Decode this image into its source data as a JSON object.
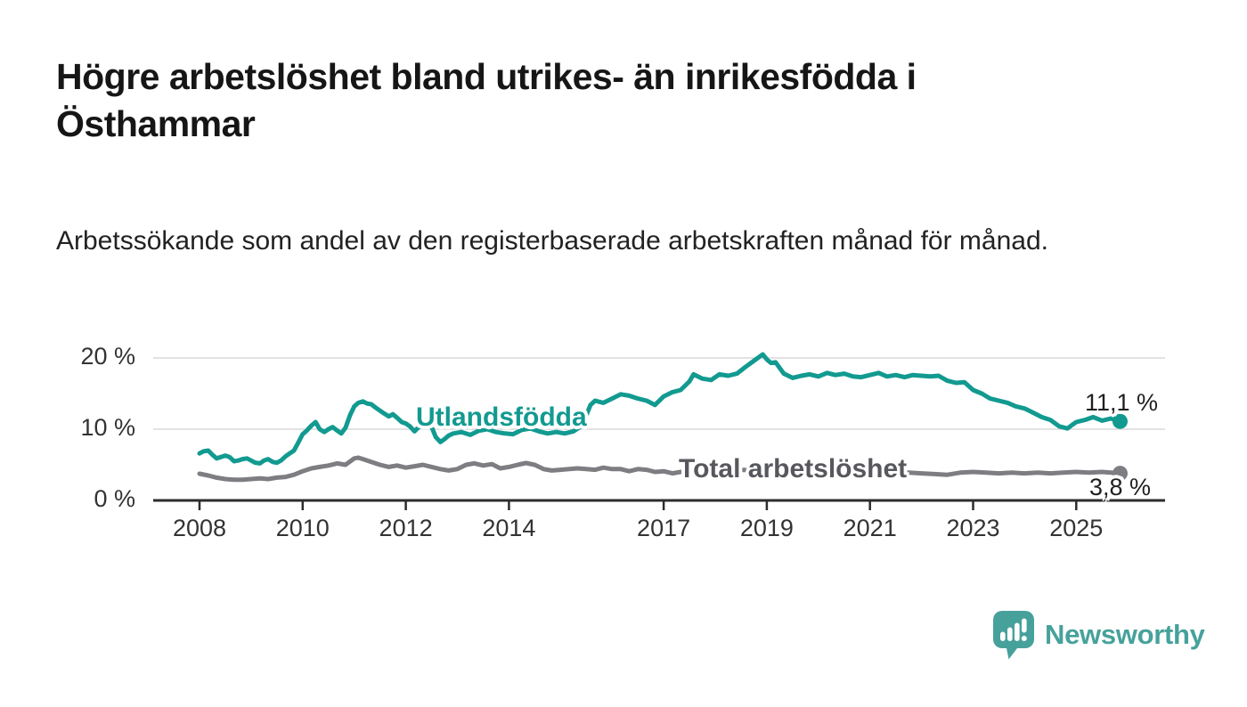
{
  "header": {
    "title": "Högre arbetslöshet bland utrikes- än inrikesfödda i Östhammar",
    "subtitle": "Arbetssökande som andel av den registerbaserade arbetskraften månad för månad."
  },
  "chart_data": {
    "type": "line",
    "title": "Högre arbetslöshet bland utrikes- än inrikesfödda i Östhammar",
    "subtitle": "Arbetssökande som andel av den registerbaserade arbetskraften månad för månad.",
    "grid": "horizontal-only",
    "legend_position": "inline-on-lines",
    "x_axis": {
      "ticks": [
        2008,
        2010,
        2012,
        2014,
        2017,
        2019,
        2021,
        2023,
        2025
      ],
      "range": [
        2007.1,
        2026.7
      ]
    },
    "y_axis": {
      "ticks": [
        0,
        10,
        20
      ],
      "tick_labels": [
        "0 %",
        "10 %",
        "20 %"
      ],
      "range": [
        0,
        21.5
      ],
      "unit": "%"
    },
    "colors": {
      "axis": "#2d2d2d",
      "gridline": "#d9d9d9",
      "tick_text": "#333333"
    },
    "series": [
      {
        "name": "Utlandsfödda",
        "slug": "utlandsfodda",
        "color": "#129a90",
        "label_color": "#129a90",
        "end_label": "11,1 %",
        "end_value": 11.1,
        "points": [
          [
            2008.0,
            6.6
          ],
          [
            2008.08,
            6.9
          ],
          [
            2008.17,
            7.0
          ],
          [
            2008.25,
            6.4
          ],
          [
            2008.33,
            5.9
          ],
          [
            2008.42,
            6.1
          ],
          [
            2008.5,
            6.3
          ],
          [
            2008.58,
            6.1
          ],
          [
            2008.67,
            5.5
          ],
          [
            2008.75,
            5.6
          ],
          [
            2008.83,
            5.8
          ],
          [
            2008.92,
            5.9
          ],
          [
            2009.0,
            5.6
          ],
          [
            2009.08,
            5.3
          ],
          [
            2009.17,
            5.2
          ],
          [
            2009.25,
            5.6
          ],
          [
            2009.33,
            5.8
          ],
          [
            2009.42,
            5.4
          ],
          [
            2009.5,
            5.3
          ],
          [
            2009.58,
            5.6
          ],
          [
            2009.67,
            6.2
          ],
          [
            2009.75,
            6.6
          ],
          [
            2009.83,
            7.0
          ],
          [
            2009.92,
            8.2
          ],
          [
            2010.0,
            9.3
          ],
          [
            2010.08,
            9.8
          ],
          [
            2010.17,
            10.5
          ],
          [
            2010.25,
            11.0
          ],
          [
            2010.33,
            10.0
          ],
          [
            2010.42,
            9.6
          ],
          [
            2010.5,
            10.0
          ],
          [
            2010.58,
            10.3
          ],
          [
            2010.67,
            9.8
          ],
          [
            2010.75,
            9.4
          ],
          [
            2010.83,
            10.2
          ],
          [
            2010.92,
            12.0
          ],
          [
            2011.0,
            13.2
          ],
          [
            2011.08,
            13.7
          ],
          [
            2011.17,
            13.9
          ],
          [
            2011.25,
            13.6
          ],
          [
            2011.33,
            13.5
          ],
          [
            2011.42,
            13.0
          ],
          [
            2011.5,
            12.6
          ],
          [
            2011.58,
            12.2
          ],
          [
            2011.67,
            11.8
          ],
          [
            2011.75,
            12.1
          ],
          [
            2011.83,
            11.6
          ],
          [
            2011.92,
            11.0
          ],
          [
            2012.0,
            10.8
          ],
          [
            2012.08,
            10.4
          ],
          [
            2012.17,
            9.7
          ],
          [
            2012.25,
            10.3
          ],
          [
            2012.33,
            10.6
          ],
          [
            2012.42,
            10.9
          ],
          [
            2012.5,
            10.3
          ],
          [
            2012.58,
            8.9
          ],
          [
            2012.67,
            8.2
          ],
          [
            2012.75,
            8.6
          ],
          [
            2012.83,
            9.1
          ],
          [
            2012.92,
            9.4
          ],
          [
            2013.08,
            9.6
          ],
          [
            2013.25,
            9.2
          ],
          [
            2013.42,
            9.8
          ],
          [
            2013.58,
            10.0
          ],
          [
            2013.75,
            9.6
          ],
          [
            2013.92,
            9.4
          ],
          [
            2014.08,
            9.3
          ],
          [
            2014.25,
            9.9
          ],
          [
            2014.42,
            10.1
          ],
          [
            2014.58,
            9.7
          ],
          [
            2014.75,
            9.4
          ],
          [
            2014.92,
            9.6
          ],
          [
            2015.08,
            9.4
          ],
          [
            2015.25,
            9.7
          ],
          [
            2015.42,
            10.5
          ],
          [
            2015.58,
            13.4
          ],
          [
            2015.67,
            14.0
          ],
          [
            2015.83,
            13.7
          ],
          [
            2016.0,
            14.3
          ],
          [
            2016.17,
            14.9
          ],
          [
            2016.33,
            14.7
          ],
          [
            2016.5,
            14.3
          ],
          [
            2016.67,
            14.0
          ],
          [
            2016.83,
            13.4
          ],
          [
            2017.0,
            14.6
          ],
          [
            2017.17,
            15.2
          ],
          [
            2017.33,
            15.5
          ],
          [
            2017.5,
            16.7
          ],
          [
            2017.58,
            17.7
          ],
          [
            2017.75,
            17.1
          ],
          [
            2017.92,
            16.9
          ],
          [
            2018.08,
            17.7
          ],
          [
            2018.25,
            17.5
          ],
          [
            2018.42,
            17.8
          ],
          [
            2018.58,
            18.7
          ],
          [
            2018.75,
            19.6
          ],
          [
            2018.92,
            20.5
          ],
          [
            2019.0,
            19.8
          ],
          [
            2019.08,
            19.3
          ],
          [
            2019.17,
            19.4
          ],
          [
            2019.33,
            17.8
          ],
          [
            2019.5,
            17.2
          ],
          [
            2019.67,
            17.5
          ],
          [
            2019.83,
            17.7
          ],
          [
            2020.0,
            17.4
          ],
          [
            2020.17,
            17.9
          ],
          [
            2020.33,
            17.6
          ],
          [
            2020.5,
            17.8
          ],
          [
            2020.67,
            17.4
          ],
          [
            2020.83,
            17.3
          ],
          [
            2021.0,
            17.6
          ],
          [
            2021.17,
            17.9
          ],
          [
            2021.33,
            17.4
          ],
          [
            2021.5,
            17.6
          ],
          [
            2021.67,
            17.3
          ],
          [
            2021.83,
            17.6
          ],
          [
            2022.0,
            17.5
          ],
          [
            2022.17,
            17.4
          ],
          [
            2022.33,
            17.5
          ],
          [
            2022.5,
            16.8
          ],
          [
            2022.67,
            16.5
          ],
          [
            2022.83,
            16.6
          ],
          [
            2023.0,
            15.5
          ],
          [
            2023.17,
            15.0
          ],
          [
            2023.33,
            14.3
          ],
          [
            2023.5,
            14.0
          ],
          [
            2023.67,
            13.7
          ],
          [
            2023.83,
            13.2
          ],
          [
            2024.0,
            12.9
          ],
          [
            2024.17,
            12.3
          ],
          [
            2024.33,
            11.7
          ],
          [
            2024.5,
            11.3
          ],
          [
            2024.67,
            10.4
          ],
          [
            2024.83,
            10.1
          ],
          [
            2024.92,
            10.6
          ],
          [
            2025.0,
            11.0
          ],
          [
            2025.17,
            11.3
          ],
          [
            2025.33,
            11.7
          ],
          [
            2025.5,
            11.2
          ],
          [
            2025.67,
            11.5
          ],
          [
            2025.85,
            11.1
          ]
        ]
      },
      {
        "name": "Total arbetslöshet",
        "slug": "total-arbetsloshet",
        "color": "#7d7d82",
        "label_color": "#57575e",
        "end_label": "3,8 %",
        "end_value": 3.8,
        "points": [
          [
            2008.0,
            3.75
          ],
          [
            2008.17,
            3.5
          ],
          [
            2008.33,
            3.2
          ],
          [
            2008.5,
            3.0
          ],
          [
            2008.67,
            2.9
          ],
          [
            2008.83,
            2.9
          ],
          [
            2009.0,
            3.0
          ],
          [
            2009.17,
            3.1
          ],
          [
            2009.33,
            3.0
          ],
          [
            2009.5,
            3.2
          ],
          [
            2009.67,
            3.3
          ],
          [
            2009.83,
            3.6
          ],
          [
            2010.0,
            4.1
          ],
          [
            2010.17,
            4.5
          ],
          [
            2010.33,
            4.7
          ],
          [
            2010.5,
            4.9
          ],
          [
            2010.67,
            5.2
          ],
          [
            2010.83,
            5.0
          ],
          [
            2011.0,
            5.9
          ],
          [
            2011.08,
            6.0
          ],
          [
            2011.17,
            5.8
          ],
          [
            2011.33,
            5.4
          ],
          [
            2011.5,
            5.0
          ],
          [
            2011.67,
            4.7
          ],
          [
            2011.83,
            4.9
          ],
          [
            2012.0,
            4.6
          ],
          [
            2012.17,
            4.8
          ],
          [
            2012.33,
            5.0
          ],
          [
            2012.5,
            4.7
          ],
          [
            2012.67,
            4.4
          ],
          [
            2012.83,
            4.2
          ],
          [
            2013.0,
            4.4
          ],
          [
            2013.17,
            5.0
          ],
          [
            2013.33,
            5.2
          ],
          [
            2013.5,
            4.9
          ],
          [
            2013.67,
            5.1
          ],
          [
            2013.83,
            4.5
          ],
          [
            2014.0,
            4.7
          ],
          [
            2014.17,
            5.0
          ],
          [
            2014.33,
            5.25
          ],
          [
            2014.5,
            5.0
          ],
          [
            2014.67,
            4.4
          ],
          [
            2014.83,
            4.2
          ],
          [
            2015.0,
            4.3
          ],
          [
            2015.17,
            4.4
          ],
          [
            2015.33,
            4.5
          ],
          [
            2015.5,
            4.4
          ],
          [
            2015.67,
            4.3
          ],
          [
            2015.83,
            4.6
          ],
          [
            2016.0,
            4.4
          ],
          [
            2016.17,
            4.4
          ],
          [
            2016.33,
            4.1
          ],
          [
            2016.5,
            4.4
          ],
          [
            2016.67,
            4.3
          ],
          [
            2016.83,
            4.0
          ],
          [
            2017.0,
            4.1
          ],
          [
            2017.17,
            3.8
          ],
          [
            2017.33,
            4.0
          ],
          [
            2017.5,
            4.0
          ],
          [
            2017.67,
            4.25
          ],
          [
            2017.83,
            4.2
          ],
          [
            2018.0,
            4.1
          ],
          [
            2018.25,
            4.2
          ],
          [
            2018.5,
            4.3
          ],
          [
            2018.75,
            4.2
          ],
          [
            2019.0,
            4.3
          ],
          [
            2019.25,
            4.4
          ],
          [
            2019.5,
            4.5
          ],
          [
            2019.75,
            4.4
          ],
          [
            2020.0,
            4.6
          ],
          [
            2020.25,
            4.9
          ],
          [
            2020.5,
            4.8
          ],
          [
            2020.75,
            4.6
          ],
          [
            2021.0,
            4.4
          ],
          [
            2021.25,
            4.2
          ],
          [
            2021.5,
            4.0
          ],
          [
            2021.75,
            3.9
          ],
          [
            2022.0,
            3.8
          ],
          [
            2022.25,
            3.7
          ],
          [
            2022.5,
            3.6
          ],
          [
            2022.75,
            3.9
          ],
          [
            2023.0,
            4.0
          ],
          [
            2023.25,
            3.9
          ],
          [
            2023.5,
            3.8
          ],
          [
            2023.75,
            3.9
          ],
          [
            2024.0,
            3.8
          ],
          [
            2024.25,
            3.9
          ],
          [
            2024.5,
            3.8
          ],
          [
            2024.75,
            3.9
          ],
          [
            2025.0,
            4.0
          ],
          [
            2025.25,
            3.9
          ],
          [
            2025.5,
            4.0
          ],
          [
            2025.67,
            3.9
          ],
          [
            2025.85,
            3.8
          ]
        ]
      }
    ]
  },
  "branding": {
    "logo_text": "Newsworthy",
    "logo_icon": "newsworthy-bar-chart-speech-bubble-icon",
    "color": "#47a19b"
  }
}
